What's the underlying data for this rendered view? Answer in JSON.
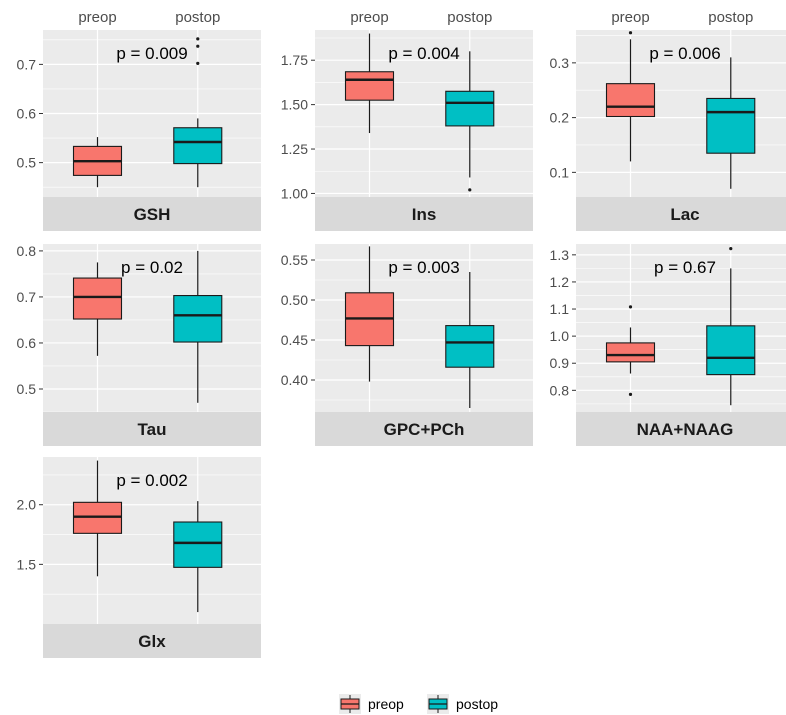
{
  "chart_data": {
    "type": "boxplot",
    "categories": [
      "preop",
      "postop"
    ],
    "colors": {
      "preop": "#F8766D",
      "postop": "#00BFC4",
      "panel": "#EBEBEB",
      "strip": "#D9D9D9",
      "grid": "#FFFFFF"
    },
    "legend": {
      "position": "bottom",
      "items": [
        "preop",
        "postop"
      ]
    },
    "panels": [
      {
        "label": "GSH",
        "p_value": "p = 0.009",
        "ylim": [
          0.43,
          0.77
        ],
        "yticks": [
          0.5,
          0.6,
          0.7
        ],
        "ytick_labels": [
          "0.5",
          "0.6",
          "0.7"
        ],
        "boxes": [
          {
            "category": "preop",
            "min": 0.45,
            "q1": 0.474,
            "median": 0.503,
            "q3": 0.533,
            "max": 0.552,
            "outliers": []
          },
          {
            "category": "postop",
            "min": 0.45,
            "q1": 0.498,
            "median": 0.542,
            "q3": 0.571,
            "max": 0.59,
            "outliers": [
              0.702,
              0.737,
              0.752
            ]
          }
        ]
      },
      {
        "label": "Ins",
        "p_value": "p = 0.004",
        "ylim": [
          0.98,
          1.92
        ],
        "yticks": [
          1.0,
          1.25,
          1.5,
          1.75
        ],
        "ytick_labels": [
          "1.00",
          "1.25",
          "1.50",
          "1.75"
        ],
        "boxes": [
          {
            "category": "preop",
            "min": 1.34,
            "q1": 1.525,
            "median": 1.64,
            "q3": 1.685,
            "max": 1.9,
            "outliers": []
          },
          {
            "category": "postop",
            "min": 1.09,
            "q1": 1.38,
            "median": 1.51,
            "q3": 1.575,
            "max": 1.8,
            "outliers": [
              1.02
            ]
          }
        ]
      },
      {
        "label": "Lac",
        "p_value": "p = 0.006",
        "ylim": [
          0.055,
          0.36
        ],
        "yticks": [
          0.1,
          0.2,
          0.3
        ],
        "ytick_labels": [
          "0.1",
          "0.2",
          "0.3"
        ],
        "boxes": [
          {
            "category": "preop",
            "min": 0.12,
            "q1": 0.202,
            "median": 0.22,
            "q3": 0.262,
            "max": 0.343,
            "outliers": [
              0.355
            ]
          },
          {
            "category": "postop",
            "min": 0.07,
            "q1": 0.135,
            "median": 0.21,
            "q3": 0.235,
            "max": 0.31,
            "outliers": []
          }
        ]
      },
      {
        "label": "Tau",
        "p_value": "p = 0.02",
        "ylim": [
          0.45,
          0.815
        ],
        "yticks": [
          0.5,
          0.6,
          0.7,
          0.8
        ],
        "ytick_labels": [
          "0.5",
          "0.6",
          "0.7",
          "0.8"
        ],
        "boxes": [
          {
            "category": "preop",
            "min": 0.572,
            "q1": 0.652,
            "median": 0.7,
            "q3": 0.741,
            "max": 0.775,
            "outliers": []
          },
          {
            "category": "postop",
            "min": 0.47,
            "q1": 0.602,
            "median": 0.66,
            "q3": 0.703,
            "max": 0.8,
            "outliers": []
          }
        ]
      },
      {
        "label": "GPC+PCh",
        "p_value": "p = 0.003",
        "ylim": [
          0.36,
          0.57
        ],
        "yticks": [
          0.4,
          0.45,
          0.5,
          0.55
        ],
        "ytick_labels": [
          "0.40",
          "0.45",
          "0.50",
          "0.55"
        ],
        "boxes": [
          {
            "category": "preop",
            "min": 0.398,
            "q1": 0.443,
            "median": 0.477,
            "q3": 0.509,
            "max": 0.567,
            "outliers": []
          },
          {
            "category": "postop",
            "min": 0.365,
            "q1": 0.416,
            "median": 0.447,
            "q3": 0.468,
            "max": 0.535,
            "outliers": []
          }
        ]
      },
      {
        "label": "NAA+NAAG",
        "p_value": "p = 0.67",
        "ylim": [
          0.72,
          1.34
        ],
        "yticks": [
          0.8,
          0.9,
          1.0,
          1.1,
          1.2,
          1.3
        ],
        "ytick_labels": [
          "0.8",
          "0.9",
          "1.0",
          "1.1",
          "1.2",
          "1.3"
        ],
        "boxes": [
          {
            "category": "preop",
            "min": 0.862,
            "q1": 0.905,
            "median": 0.93,
            "q3": 0.975,
            "max": 1.032,
            "outliers": [
              0.785,
              1.108
            ]
          },
          {
            "category": "postop",
            "min": 0.745,
            "q1": 0.858,
            "median": 0.92,
            "q3": 1.038,
            "max": 1.25,
            "outliers": [
              1.323
            ]
          }
        ]
      },
      {
        "label": "Glx",
        "p_value": "p = 0.002",
        "ylim": [
          1.0,
          2.4
        ],
        "yticks": [
          1.5,
          2.0
        ],
        "ytick_labels": [
          "1.5",
          "2.0"
        ],
        "boxes": [
          {
            "category": "preop",
            "min": 1.4,
            "q1": 1.76,
            "median": 1.9,
            "q3": 2.02,
            "max": 2.37,
            "outliers": []
          },
          {
            "category": "postop",
            "min": 1.1,
            "q1": 1.475,
            "median": 1.68,
            "q3": 1.855,
            "max": 2.03,
            "outliers": []
          }
        ]
      }
    ]
  }
}
